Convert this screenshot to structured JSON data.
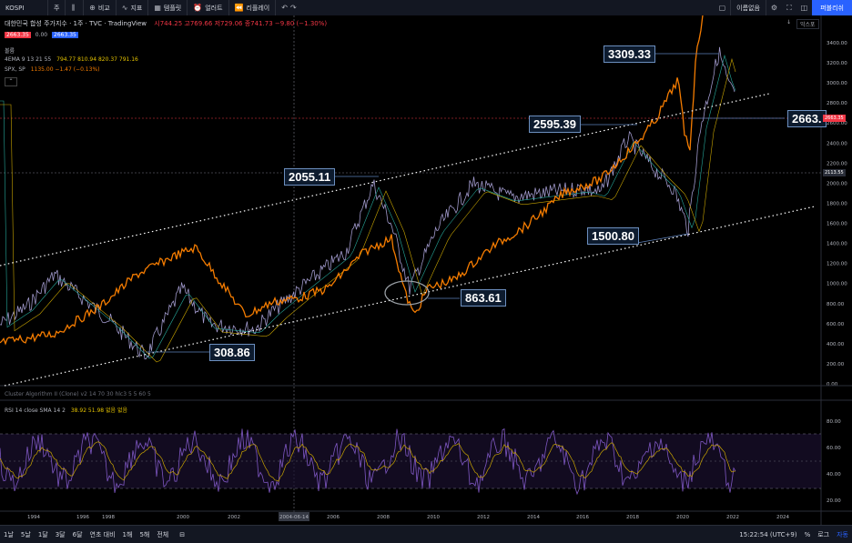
{
  "toolbar": {
    "symbol": "KOSPI",
    "interval": "주",
    "compare_label": "비교",
    "indicators_label": "지표",
    "templates_label": "템플릿",
    "alert_label": "얼러트",
    "replay_label": "리플레이",
    "unnamed_label": "이름없음",
    "publish_label": "퍼블리쉬"
  },
  "header": {
    "title": "대한민국 합성 주가지수 · 1주 · TVC · TradingView",
    "ohlc": "시744.25 고769.66 저729.06 종741.73 −9.80 (−1.30%)",
    "price_a": "2663.35",
    "price_b": "0.00",
    "price_c": "2663.35",
    "volume_label": "볼륨",
    "ema_legend": "4EMA 9 13 21 55",
    "ema_values": "794.77  810.94  820.37  791.16",
    "spx_legend": "SPX, SP",
    "spx_values": "1135.00 −1.47 (−0.13%)",
    "log_button": "익스포"
  },
  "callouts": {
    "c1": "3309.33",
    "c2": "2595.39",
    "c3": "2663.",
    "c4": "2055.11",
    "c5": "1500.80",
    "c6": "863.61",
    "c7": "308.86"
  },
  "price_axis": {
    "ticks": [
      "3400.00",
      "3200.00",
      "3000.00",
      "2800.00",
      "2600.00",
      "2400.00",
      "2200.00",
      "2000.00",
      "1800.00",
      "1600.00",
      "1400.00",
      "1200.00",
      "1000.00",
      "800.00",
      "600.00",
      "400.00",
      "200.00",
      "0.00"
    ],
    "badge_red": "2663.35",
    "badge_grey": "2113.55"
  },
  "rsi": {
    "legend": "RSI 14 close SMA 14 2",
    "values": "38.92  51.98  없음  없음",
    "cluster_legend": "Cluster Algorithm II (Clone) v2 14 70 30 hlc3 5 5 60 5",
    "ticks": [
      "80.00",
      "60.00",
      "40.00",
      "20.00"
    ]
  },
  "time_axis": {
    "labels": [
      "1994",
      "1996",
      "1998",
      "2000",
      "2002",
      "2004-06-14",
      "2006",
      "2008",
      "2010",
      "2012",
      "2014",
      "2016",
      "2018",
      "2020",
      "2022",
      "2024"
    ]
  },
  "bottom": {
    "ranges": [
      "1날",
      "5날",
      "1달",
      "3달",
      "6달",
      "연초 대비",
      "1해",
      "5해",
      "전체"
    ],
    "clock": "15:22:54 (UTC+9)",
    "pct": "%",
    "log": "로그",
    "auto": "자동"
  },
  "colors": {
    "spx_line": "#f57c00",
    "kospi_line": "#b0a8e0",
    "channel": "#ffffff",
    "rsi_line": "#7e57c2",
    "rsi_sma": "#c8a400",
    "publish": "#2962ff"
  }
}
